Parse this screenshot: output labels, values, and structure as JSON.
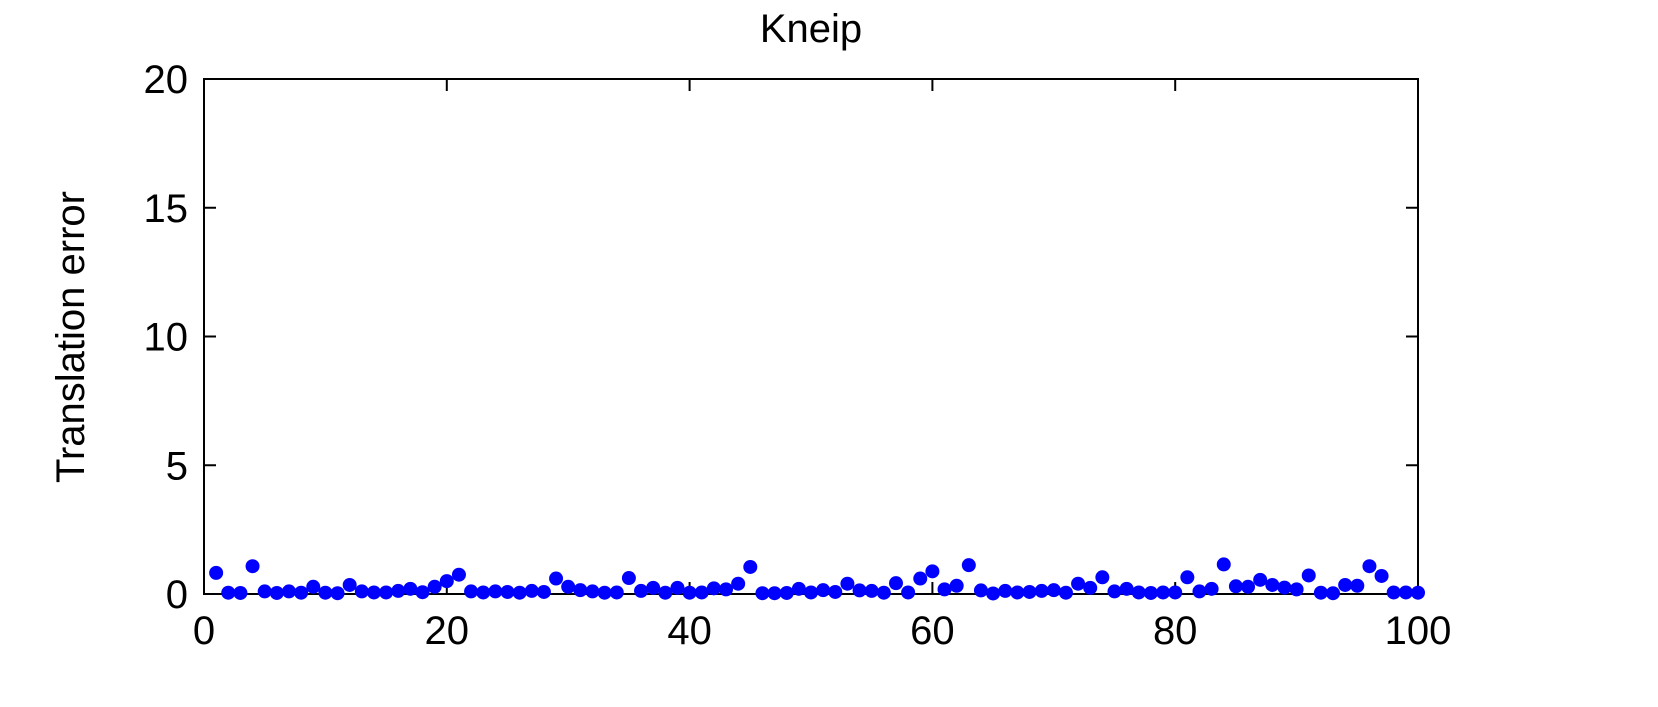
{
  "chart_data": {
    "type": "scatter",
    "title": "Kneip",
    "xlabel": "",
    "ylabel": "Translation error",
    "xlim": [
      0,
      100
    ],
    "ylim": [
      0,
      20
    ],
    "xticks": [
      0,
      20,
      40,
      60,
      80,
      100
    ],
    "yticks": [
      0,
      5,
      10,
      15,
      20
    ],
    "grid": false,
    "colors": {
      "marker": "#0000ff",
      "axis": "#000000"
    },
    "series": [
      {
        "x": [
          1,
          2,
          3,
          4,
          5,
          6,
          7,
          8,
          9,
          10,
          11,
          12,
          13,
          14,
          15,
          16,
          17,
          18,
          19,
          20,
          21,
          22,
          23,
          24,
          25,
          26,
          27,
          28,
          29,
          30,
          31,
          32,
          33,
          34,
          35,
          36,
          37,
          38,
          39,
          40,
          41,
          42,
          43,
          44,
          45,
          46,
          47,
          48,
          49,
          50,
          51,
          52,
          53,
          54,
          55,
          56,
          57,
          58,
          59,
          60,
          61,
          62,
          63,
          64,
          65,
          66,
          67,
          68,
          69,
          70,
          71,
          72,
          73,
          74,
          75,
          76,
          77,
          78,
          79,
          80,
          81,
          82,
          83,
          84,
          85,
          86,
          87,
          88,
          89,
          90,
          91,
          92,
          93,
          94,
          95,
          96,
          97,
          98,
          99,
          100
        ],
        "values": [
          0.82,
          0.05,
          0.04,
          1.08,
          0.1,
          0.04,
          0.1,
          0.05,
          0.28,
          0.05,
          0.03,
          0.35,
          0.1,
          0.06,
          0.06,
          0.12,
          0.2,
          0.07,
          0.28,
          0.5,
          0.75,
          0.1,
          0.06,
          0.1,
          0.08,
          0.05,
          0.12,
          0.08,
          0.6,
          0.28,
          0.15,
          0.1,
          0.05,
          0.06,
          0.62,
          0.12,
          0.24,
          0.05,
          0.24,
          0.05,
          0.06,
          0.22,
          0.18,
          0.4,
          1.05,
          0.03,
          0.03,
          0.04,
          0.2,
          0.06,
          0.15,
          0.08,
          0.4,
          0.14,
          0.12,
          0.05,
          0.42,
          0.06,
          0.6,
          0.88,
          0.18,
          0.32,
          1.12,
          0.14,
          0.02,
          0.12,
          0.06,
          0.08,
          0.12,
          0.15,
          0.05,
          0.4,
          0.24,
          0.65,
          0.1,
          0.2,
          0.06,
          0.04,
          0.06,
          0.06,
          0.65,
          0.1,
          0.2,
          1.15,
          0.3,
          0.28,
          0.55,
          0.35,
          0.25,
          0.18,
          0.72,
          0.05,
          0.03,
          0.35,
          0.32,
          1.08,
          0.7,
          0.06,
          0.06,
          0.05
        ]
      }
    ]
  }
}
